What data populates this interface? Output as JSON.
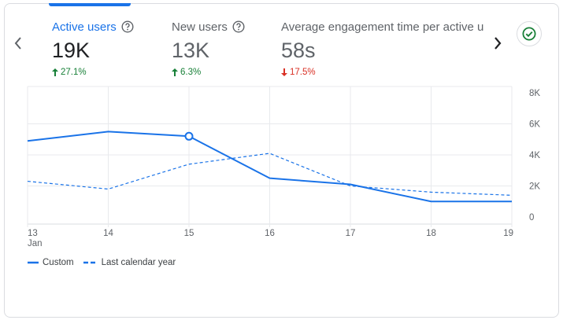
{
  "metrics": [
    {
      "label": "Active users",
      "value": "19K",
      "change": "27.1%",
      "direction": "up",
      "selected": true
    },
    {
      "label": "New users",
      "value": "13K",
      "change": "6.3%",
      "direction": "up",
      "selected": false
    },
    {
      "label": "Average engagement time per active us",
      "value": "58s",
      "change": "17.5%",
      "direction": "down",
      "selected": false
    }
  ],
  "icons": {
    "help": "help-circle-icon",
    "prev": "chevron-left-icon",
    "next": "chevron-right-icon",
    "check": "check-circle-icon"
  },
  "colors": {
    "accent": "#1a73e8",
    "positive": "#188038",
    "negative": "#d93025",
    "check": "#188038"
  },
  "chart_data": {
    "type": "line",
    "categories": [
      "13",
      "14",
      "15",
      "16",
      "17",
      "18",
      "19"
    ],
    "x_sublabel": "Jan",
    "y_ticks": [
      0,
      2000,
      4000,
      6000,
      8000
    ],
    "y_tick_labels": [
      "0",
      "2K",
      "4K",
      "6K",
      "8K"
    ],
    "ylim": [
      0,
      8000
    ],
    "y_axis_position": "right",
    "grid": true,
    "legend_position": "bottom-left",
    "highlight_index": 2,
    "series": [
      {
        "name": "Custom",
        "style": "solid",
        "values": [
          4900,
          5500,
          5200,
          2500,
          2100,
          1000,
          1000
        ]
      },
      {
        "name": "Last calendar year",
        "style": "dashed",
        "values": [
          2300,
          1800,
          3400,
          4100,
          2000,
          1600,
          1400
        ]
      }
    ]
  }
}
